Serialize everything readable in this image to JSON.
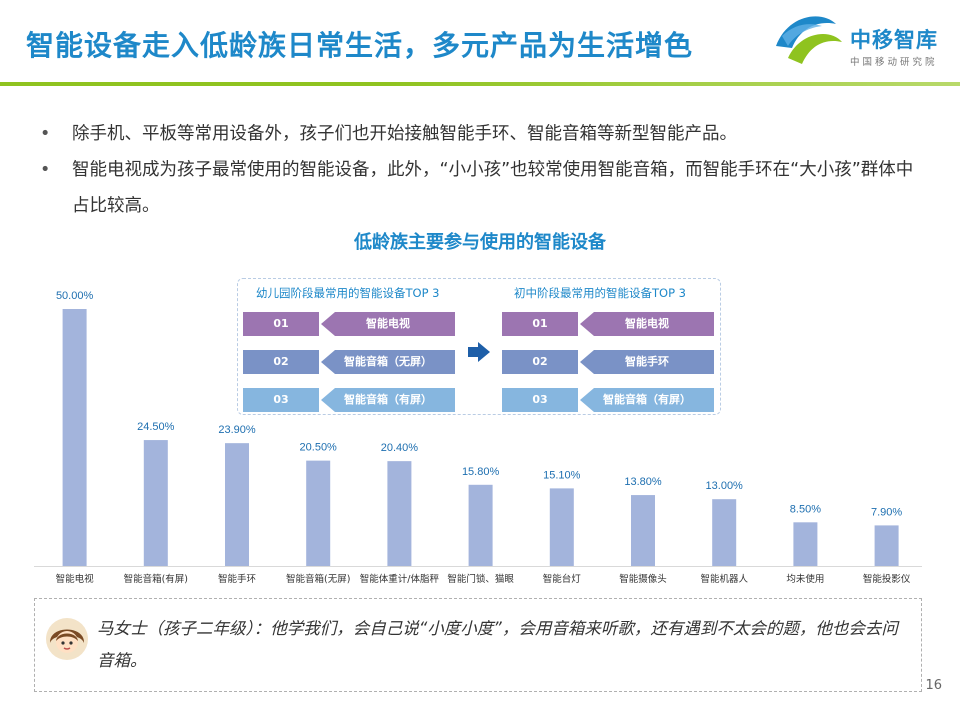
{
  "title": "智能设备走入低龄族日常生活，多元产品为生活增色",
  "logo": {
    "name": "中移智库",
    "sub": "中国移动研究院"
  },
  "bullets": [
    "除手机、平板等常用设备外，孩子们也开始接触智能手环、智能音箱等新型智能产品。",
    "智能电视成为孩子最常使用的智能设备，此外，“小小孩”也较常使用智能音箱，而智能手环在“大小孩”群体中占比较高。"
  ],
  "chart_data": {
    "type": "bar",
    "title": "低龄族主要参与使用的智能设备",
    "categories": [
      "智能电视",
      "智能音箱(有屏)",
      "智能手环",
      "智能音箱(无屏)",
      "智能体重计/体脂秤",
      "智能门锁、猫眼",
      "智能台灯",
      "智能摄像头",
      "智能机器人",
      "均未使用",
      "智能投影仪"
    ],
    "values": [
      50.0,
      24.5,
      23.9,
      20.5,
      20.4,
      15.8,
      15.1,
      13.8,
      13.0,
      8.5,
      7.9
    ],
    "labels": [
      "50.00%",
      "24.50%",
      "23.90%",
      "20.50%",
      "20.40%",
      "15.80%",
      "15.10%",
      "13.80%",
      "13.00%",
      "8.50%",
      "7.90%"
    ],
    "ylim": [
      0,
      50
    ],
    "bar_color": "#a3b4dc",
    "grid": false
  },
  "inset": {
    "left_title": "幼儿园阶段最常用的智能设备TOP 3",
    "right_title": "初中阶段最常用的智能设备TOP 3",
    "left_items": [
      {
        "rank": "01",
        "name": "智能电视",
        "color": "#9c75b1"
      },
      {
        "rank": "02",
        "name": "智能音箱（无屏）",
        "color": "#7a92c6"
      },
      {
        "rank": "03",
        "name": "智能音箱（有屏）",
        "color": "#86b6df"
      }
    ],
    "right_items": [
      {
        "rank": "01",
        "name": "智能电视",
        "color": "#9c75b1"
      },
      {
        "rank": "02",
        "name": "智能手环",
        "color": "#7a92c6"
      },
      {
        "rank": "03",
        "name": "智能音箱（有屏）",
        "color": "#86b6df"
      }
    ]
  },
  "quote": "马女士（孩子二年级）：他学我们，会自己说“小度小度”，会用音箱来听歌，还有遇到不太会的题，他也会去问音箱。",
  "page_number": "16"
}
